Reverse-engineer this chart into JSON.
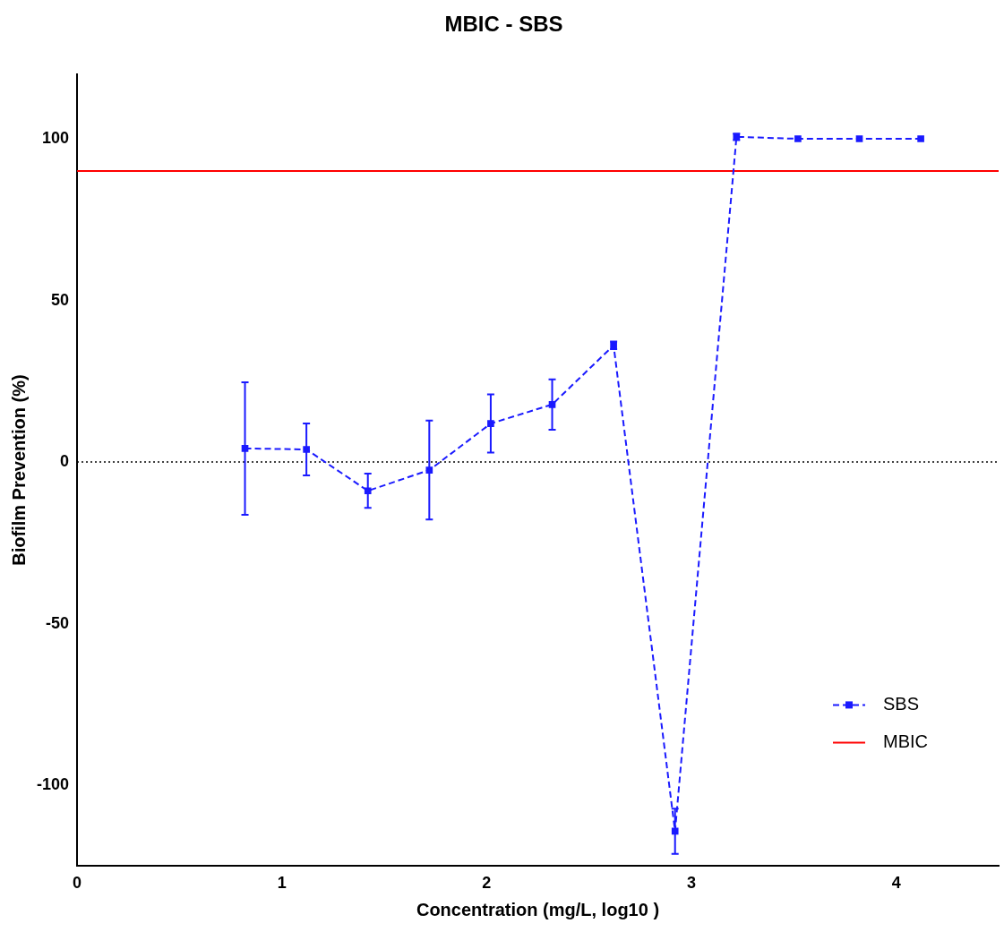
{
  "chart_data": {
    "type": "line",
    "title": "MBIC - SBS",
    "xlabel": "Concentration (mg/L, log10 )",
    "ylabel": "Biofilm Prevention (%)",
    "xlim": [
      0,
      4.5
    ],
    "xticks": [
      0,
      1,
      2,
      3,
      4
    ],
    "ylim": [
      -125,
      120
    ],
    "yticks": [
      -100,
      -50,
      0,
      50,
      100
    ],
    "grid": false,
    "legend": "bottom right",
    "series": [
      {
        "name": "SBS",
        "color": "#1a1aff",
        "marker": "square",
        "line_style": "dashed",
        "x": [
          0.82,
          1.12,
          1.42,
          1.72,
          2.02,
          2.32,
          2.62,
          2.92,
          3.22,
          3.52,
          3.82,
          4.12
        ],
        "values": [
          4.2,
          3.9,
          -8.9,
          -2.5,
          11.9,
          17.8,
          36.1,
          -114.2,
          100.6,
          100,
          100,
          100
        ],
        "errors": [
          20.5,
          8,
          5.3,
          15.3,
          9,
          7.8,
          1.2,
          7,
          1,
          null,
          null,
          null
        ]
      },
      {
        "name": "MBIC",
        "color": "#ff0000",
        "marker": "none",
        "line_style": "solid",
        "x": [
          0,
          4.5
        ],
        "values": [
          90,
          90
        ]
      }
    ],
    "ref_lines": [
      {
        "axis": "y",
        "value": 0,
        "color": "#000000",
        "line_style": "dotted"
      }
    ]
  }
}
